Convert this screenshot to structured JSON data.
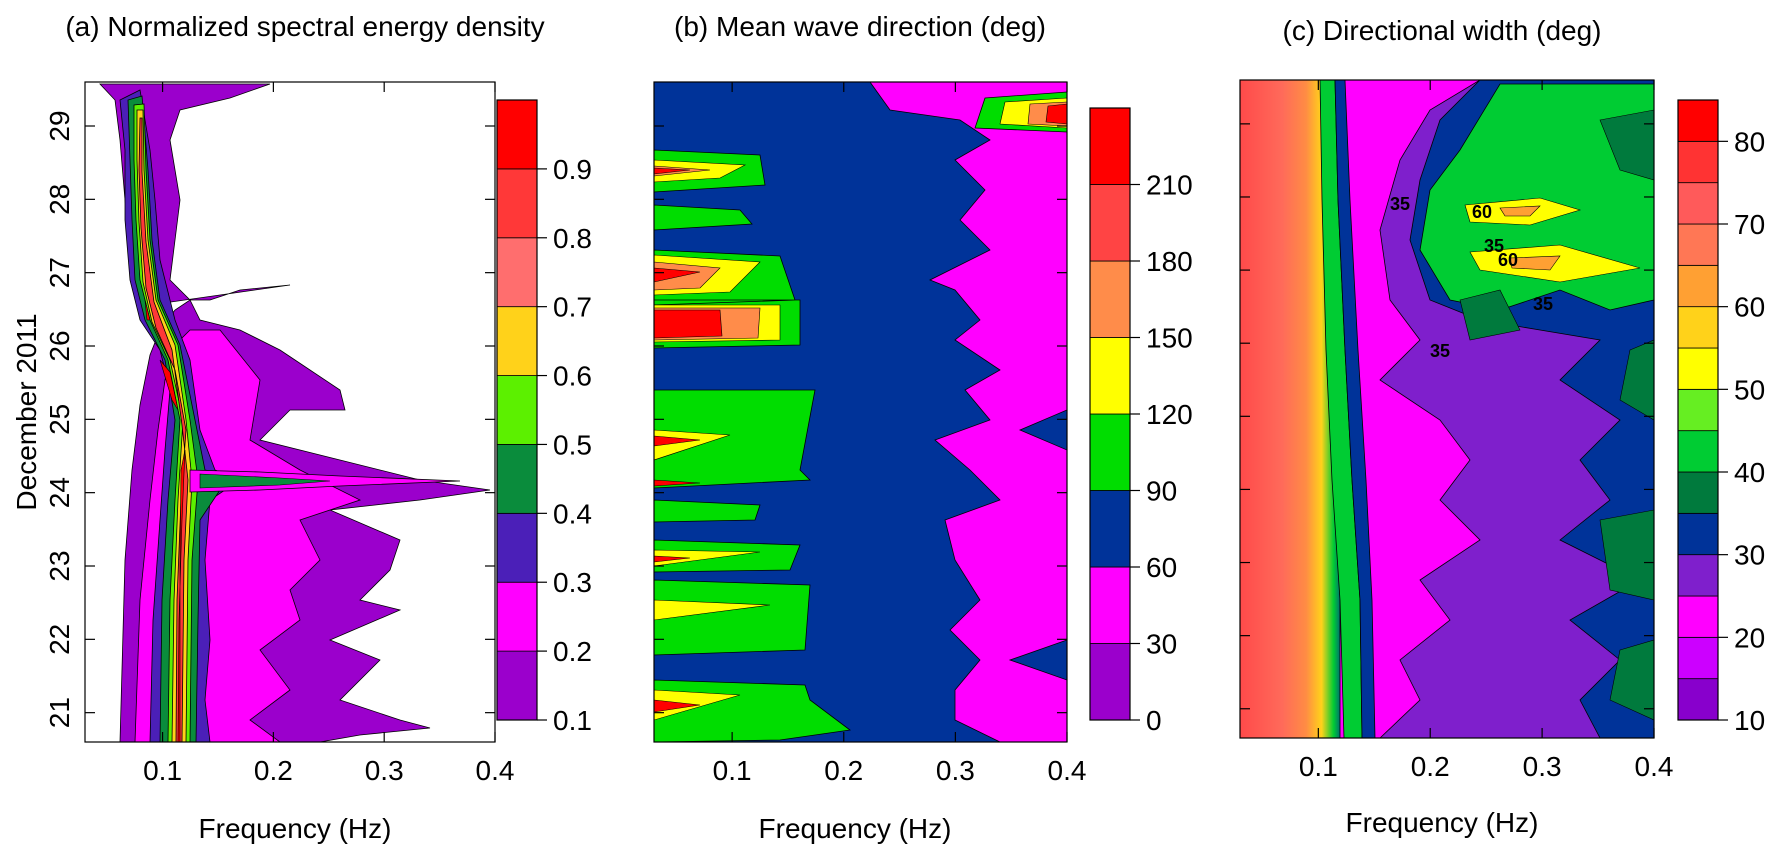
{
  "figure": {
    "ylabel": "December 2011"
  },
  "chart_data": [
    {
      "type": "heatmap",
      "title": "(a) Normalized spectral energy density",
      "xlabel": "Frequency (Hz)",
      "ylabel": "December 2011",
      "xlim": [
        0.03,
        0.4
      ],
      "ylim": [
        20.6,
        29.6
      ],
      "xticks": [
        0.1,
        0.2,
        0.3,
        0.4
      ],
      "xtick_labels": [
        "0.1",
        "0.2",
        "0.3",
        "0.4"
      ],
      "yticks": [
        21,
        22,
        23,
        24,
        25,
        26,
        27,
        28,
        29
      ],
      "ytick_labels": [
        "21",
        "22",
        "23",
        "24",
        "25",
        "26",
        "27",
        "28",
        "29"
      ],
      "colorbar": {
        "levels": [
          0.1,
          0.2,
          0.3,
          0.4,
          0.5,
          0.6,
          0.7,
          0.8,
          0.9,
          1.0
        ],
        "colors": [
          "#9b00cc",
          "#ff00ff",
          "#4b1fb8",
          "#0a8c3c",
          "#5cf000",
          "#ffd21a",
          "#ff6e6e",
          "#ff3838",
          "#ff0000"
        ],
        "tick_labels": [
          "0.1",
          "0.2",
          "0.3",
          "0.4",
          "0.5",
          "0.6",
          "0.7",
          "0.8",
          "0.9"
        ]
      },
      "peak_freq_by_day": [
        [
          20.6,
          0.13
        ],
        [
          22,
          0.13
        ],
        [
          23,
          0.13
        ],
        [
          24,
          0.12
        ],
        [
          25,
          0.12
        ],
        [
          26,
          0.1
        ],
        [
          27,
          0.09
        ],
        [
          28,
          0.09
        ],
        [
          29,
          0.09
        ],
        [
          29.6,
          0.08
        ]
      ]
    },
    {
      "type": "heatmap",
      "title": "(b) Mean wave direction (deg)",
      "xlabel": "Frequency (Hz)",
      "xlim": [
        0.03,
        0.4
      ],
      "ylim": [
        20.6,
        29.6
      ],
      "xticks": [
        0.1,
        0.2,
        0.3,
        0.4
      ],
      "xtick_labels": [
        "0.1",
        "0.2",
        "0.3",
        "0.4"
      ],
      "colorbar": {
        "levels": [
          0,
          30,
          60,
          90,
          120,
          150,
          180,
          210,
          240
        ],
        "colors": [
          "#9b00cc",
          "#ff00ff",
          "#003399",
          "#00dd00",
          "#ffff00",
          "#ff8c4a",
          "#ff4444",
          "#ff0000"
        ],
        "tick_labels": [
          "0",
          "30",
          "60",
          "90",
          "120",
          "150",
          "180",
          "210"
        ]
      },
      "boundary_60_90_freq": [
        [
          20.6,
          0.22
        ],
        [
          22,
          0.21
        ],
        [
          24,
          0.25
        ],
        [
          26,
          0.24
        ],
        [
          28,
          0.24
        ],
        [
          29.6,
          0.2
        ]
      ]
    },
    {
      "type": "heatmap",
      "title": "(c) Directional width (deg)",
      "xlabel": "Frequency (Hz)",
      "xlim": [
        0.03,
        0.4
      ],
      "ylim": [
        20.6,
        29.6
      ],
      "xticks": [
        0.1,
        0.2,
        0.3,
        0.4
      ],
      "xtick_labels": [
        "0.1",
        "0.2",
        "0.3",
        "0.4"
      ],
      "colorbar": {
        "levels": [
          10,
          15,
          20,
          25,
          30,
          35,
          40,
          45,
          50,
          55,
          60,
          65,
          70,
          75,
          80,
          85
        ],
        "colors": [
          "#8800cc",
          "#cc00ff",
          "#ff00ff",
          "#7f1fcc",
          "#003399",
          "#007a3d",
          "#00cc33",
          "#66ee22",
          "#ffff00",
          "#ffd21a",
          "#ffa033",
          "#ff7755",
          "#ff5a5a",
          "#ff3333",
          "#ff0000"
        ],
        "tick_labels": [
          "10",
          "20",
          "30",
          "40",
          "50",
          "60",
          "70",
          "80"
        ]
      },
      "contour_labels": [
        "35",
        "60",
        "35",
        "60",
        "35",
        "35"
      ]
    }
  ]
}
